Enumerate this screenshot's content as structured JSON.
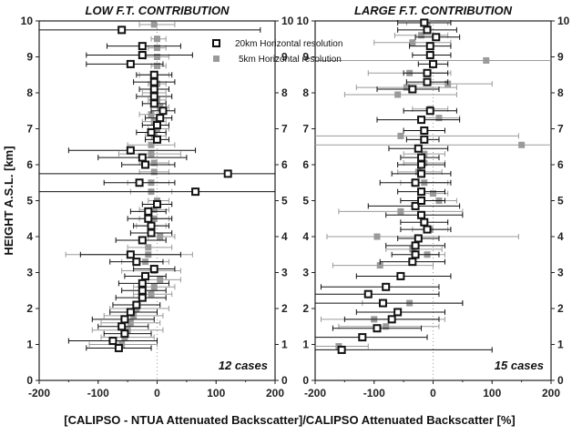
{
  "chart_data": {
    "type": "scatter",
    "xlabel": "[CALIPSO - NTUA Attenuated Backscatter]/CALIPSO Attenuated Backscatter [%]",
    "ylabel": "HEIGHT A.S.L. [km]",
    "xlim": [
      -200,
      200
    ],
    "ylim": [
      0,
      10
    ],
    "xticks": [
      "-200",
      "-100",
      "0",
      "100",
      "200"
    ],
    "yticks": [
      "0",
      "1",
      "2",
      "3",
      "4",
      "5",
      "6",
      "7",
      "8",
      "9",
      "10"
    ],
    "legend": {
      "placement": "top-right of left panel",
      "entries": [
        "20km Horizontal resolution",
        "5km Horizontal resolution"
      ]
    },
    "colors": {
      "series_20km": "#111111",
      "series_5km": "#9a9a9a"
    },
    "panels": [
      {
        "title": "LOW F.T. CONTRIBUTION",
        "cases": "12 cases",
        "series": [
          {
            "name": "20km Horizontal resolution",
            "points": [
              [
                -65,
                0.9,
                -120,
                -10
              ],
              [
                -75,
                1.1,
                -150,
                0
              ],
              [
                -55,
                1.3,
                -90,
                -10
              ],
              [
                -60,
                1.5,
                -100,
                -15
              ],
              [
                -55,
                1.7,
                -110,
                -5
              ],
              [
                -45,
                1.9,
                -80,
                0
              ],
              [
                -35,
                2.1,
                -75,
                5
              ],
              [
                -25,
                2.3,
                -70,
                15
              ],
              [
                -25,
                2.5,
                -60,
                15
              ],
              [
                -25,
                2.7,
                -65,
                20
              ],
              [
                -20,
                2.9,
                -55,
                15
              ],
              [
                -5,
                3.1,
                -40,
                30
              ],
              [
                -35,
                3.3,
                -80,
                10
              ],
              [
                -45,
                3.5,
                -130,
                40
              ],
              [
                -25,
                3.9,
                -70,
                15
              ],
              [
                -10,
                4.1,
                -45,
                25
              ],
              [
                -10,
                4.3,
                -40,
                20
              ],
              [
                -15,
                4.5,
                -50,
                25
              ],
              [
                -15,
                4.7,
                -45,
                15
              ],
              [
                0,
                4.9,
                -25,
                25
              ],
              [
                65,
                5.25,
                -200,
                200
              ],
              [
                -30,
                5.5,
                -90,
                30
              ],
              [
                120,
                5.75,
                -200,
                200
              ],
              [
                -20,
                6.0,
                -60,
                30
              ],
              [
                -25,
                6.2,
                -100,
                50
              ],
              [
                -45,
                6.4,
                -150,
                65
              ],
              [
                0,
                6.7,
                -20,
                20
              ],
              [
                -10,
                6.9,
                -35,
                15
              ],
              [
                0,
                7.1,
                -25,
                20
              ],
              [
                5,
                7.3,
                -20,
                25
              ],
              [
                10,
                7.5,
                -10,
                30
              ],
              [
                -5,
                7.7,
                -25,
                15
              ],
              [
                -5,
                7.9,
                -35,
                25
              ],
              [
                -5,
                8.1,
                -30,
                20
              ],
              [
                -5,
                8.3,
                -40,
                30
              ],
              [
                -5,
                8.5,
                -35,
                25
              ],
              [
                -45,
                8.8,
                -120,
                10
              ],
              [
                -25,
                9.05,
                -120,
                60
              ],
              [
                -25,
                9.3,
                -85,
                40
              ],
              [
                -60,
                9.75,
                -200,
                175
              ]
            ]
          },
          {
            "name": "5km Horizontal resolution",
            "points": [
              [
                -60,
                1.0,
                -115,
                0
              ],
              [
                -55,
                1.2,
                -95,
                -5
              ],
              [
                -50,
                1.4,
                -110,
                10
              ],
              [
                -45,
                1.6,
                -95,
                5
              ],
              [
                -40,
                1.8,
                -90,
                10
              ],
              [
                -35,
                2.0,
                -80,
                20
              ],
              [
                -10,
                2.4,
                -40,
                25
              ],
              [
                -5,
                2.6,
                -40,
                30
              ],
              [
                5,
                2.8,
                -15,
                40
              ],
              [
                -5,
                3.05,
                -60,
                40
              ],
              [
                -20,
                3.3,
                -60,
                20
              ],
              [
                -15,
                3.5,
                -155,
                60
              ],
              [
                -15,
                3.7,
                -50,
                25
              ],
              [
                5,
                4.0,
                -15,
                30
              ],
              [
                -10,
                4.3,
                -35,
                15
              ],
              [
                -5,
                4.5,
                -30,
                20
              ],
              [
                -5,
                4.75,
                -30,
                20
              ],
              [
                0,
                5.0,
                -15,
                20
              ],
              [
                -10,
                5.25,
                -45,
                25
              ],
              [
                -10,
                5.5,
                -50,
                20
              ],
              [
                -5,
                5.8,
                -30,
                20
              ],
              [
                -5,
                6.05,
                -30,
                20
              ],
              [
                -10,
                6.3,
                -65,
                40
              ],
              [
                -10,
                6.55,
                -50,
                30
              ],
              [
                -5,
                6.8,
                -20,
                15
              ],
              [
                0,
                7.0,
                -15,
                20
              ],
              [
                -5,
                7.2,
                -25,
                15
              ],
              [
                -10,
                7.4,
                -30,
                10
              ],
              [
                5,
                7.6,
                -10,
                20
              ],
              [
                0,
                7.8,
                -15,
                15
              ],
              [
                -5,
                8.0,
                -25,
                15
              ],
              [
                0,
                8.25,
                -15,
                15
              ],
              [
                -5,
                8.5,
                -30,
                20
              ],
              [
                0,
                8.75,
                -10,
                15
              ],
              [
                0,
                9.0,
                -20,
                20
              ],
              [
                0,
                9.25,
                -15,
                15
              ],
              [
                0,
                9.5,
                -10,
                15
              ],
              [
                -5,
                9.9,
                -30,
                30
              ]
            ]
          }
        ]
      },
      {
        "title": "LARGE F.T. CONTRIBUTION",
        "cases": "15 cases",
        "series": [
          {
            "name": "20km Horizontal resolution",
            "points": [
              [
                -155,
                0.85,
                -200,
                100
              ],
              [
                -120,
                1.2,
                -200,
                -10
              ],
              [
                -95,
                1.45,
                -170,
                -20
              ],
              [
                -70,
                1.7,
                -150,
                10
              ],
              [
                -60,
                1.9,
                -130,
                20
              ],
              [
                -85,
                2.15,
                -200,
                50
              ],
              [
                -110,
                2.4,
                -200,
                10
              ],
              [
                -80,
                2.6,
                -190,
                10
              ],
              [
                -55,
                2.9,
                -130,
                30
              ],
              [
                -35,
                3.3,
                -90,
                20
              ],
              [
                -30,
                3.5,
                -70,
                10
              ],
              [
                -30,
                3.75,
                -80,
                20
              ],
              [
                -25,
                3.95,
                -60,
                10
              ],
              [
                -10,
                4.2,
                -55,
                30
              ],
              [
                -15,
                4.4,
                -55,
                25
              ],
              [
                -20,
                4.6,
                -80,
                50
              ],
              [
                -30,
                4.85,
                -110,
                45
              ],
              [
                -20,
                5.0,
                -55,
                20
              ],
              [
                -20,
                5.25,
                -60,
                20
              ],
              [
                -30,
                5.5,
                -90,
                30
              ],
              [
                -20,
                5.75,
                -70,
                30
              ],
              [
                -20,
                6.0,
                -60,
                20
              ],
              [
                -20,
                6.2,
                -55,
                10
              ],
              [
                -25,
                6.45,
                -75,
                25
              ],
              [
                -15,
                6.7,
                -45,
                10
              ],
              [
                -15,
                6.95,
                -50,
                20
              ],
              [
                -20,
                7.25,
                -95,
                45
              ],
              [
                -5,
                7.5,
                -50,
                40
              ],
              [
                -35,
                8.1,
                -95,
                10
              ],
              [
                -10,
                8.3,
                -45,
                25
              ],
              [
                -10,
                8.55,
                -50,
                25
              ],
              [
                0,
                8.8,
                -25,
                25
              ],
              [
                -5,
                9.05,
                -35,
                30
              ],
              [
                -5,
                9.3,
                -40,
                30
              ],
              [
                5,
                9.55,
                -30,
                45
              ],
              [
                -10,
                9.75,
                -60,
                40
              ],
              [
                -15,
                9.95,
                -60,
                30
              ]
            ]
          },
          {
            "name": "5km Horizontal resolution",
            "points": [
              [
                -160,
                0.95,
                -200,
                -110
              ],
              [
                -80,
                1.5,
                -160,
                10
              ],
              [
                -100,
                1.7,
                -190,
                20
              ],
              [
                -40,
                2.15,
                -120,
                50
              ],
              [
                -90,
                3.2,
                -170,
                0
              ],
              [
                -10,
                3.5,
                -35,
                20
              ],
              [
                -35,
                3.65,
                -80,
                15
              ],
              [
                -95,
                4.0,
                -180,
                145
              ],
              [
                -5,
                4.2,
                -35,
                25
              ],
              [
                -55,
                4.7,
                -160,
                50
              ],
              [
                10,
                5.0,
                -20,
                40
              ],
              [
                0,
                5.2,
                -25,
                25
              ],
              [
                -15,
                5.5,
                -55,
                25
              ],
              [
                -25,
                5.8,
                -60,
                15
              ],
              [
                -15,
                6.05,
                -50,
                20
              ],
              [
                -15,
                6.3,
                -50,
                20
              ],
              [
                150,
                6.55,
                -200,
                200
              ],
              [
                -55,
                6.8,
                -200,
                145
              ],
              [
                10,
                7.3,
                -25,
                45
              ],
              [
                -5,
                7.55,
                -35,
                25
              ],
              [
                25,
                8.25,
                -45,
                100
              ],
              [
                -60,
                7.95,
                -150,
                40
              ],
              [
                -45,
                8.15,
                -130,
                40
              ],
              [
                -40,
                8.55,
                -110,
                30
              ],
              [
                90,
                8.9,
                -200,
                200
              ],
              [
                -35,
                9.4,
                -100,
                30
              ],
              [
                -20,
                9.6,
                -65,
                25
              ],
              [
                -10,
                9.95,
                -45,
                25
              ]
            ]
          }
        ]
      }
    ]
  }
}
